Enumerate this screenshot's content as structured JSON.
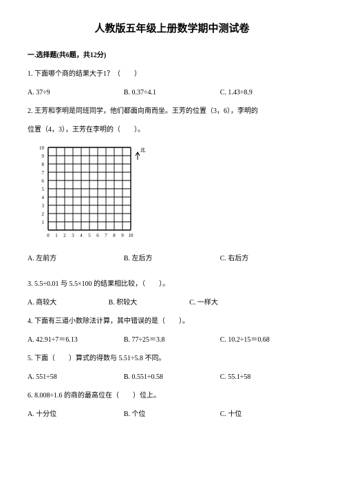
{
  "title": "人教版五年级上册数学期中测试卷",
  "section1": "一.选择题(共6题，共12分)",
  "q1": {
    "stem": "1. 下面哪个商的结果大于1？（　　）",
    "A": "A. 37÷9",
    "B": "B. 0.37÷4.1",
    "C": "C. 1.43÷8.9"
  },
  "q2": {
    "line1": "2. 王芳和李明是同班同学，他们都面向南而坐。王芳的位置（3，6），李明的",
    "line2": "位置（4，3），王芳在李明的（　　）。",
    "north": "北",
    "A": "A. 左前方",
    "B": "B. 左后方",
    "C": "C. 右后方"
  },
  "q3": {
    "stem": "3. 5.5÷0.01 与 5.5×100 的结果相比较，（　　）。",
    "A": "A. 商较大",
    "B": "B. 积较大",
    "C": "C. 一样大"
  },
  "q4": {
    "stem": "4. 下面有三道小数除法计算，其中错误的是（　　）。",
    "A": "A. 42.91÷7＝6.13",
    "B": "B. 77÷25＝3.8",
    "C": "C. 10.2÷15＝0.68"
  },
  "q5": {
    "stem": "5. 下面（　　）算式的得数与 5.51÷5.8 不同。",
    "A": "A. 551÷58",
    "B": "B. 0.551÷0.58",
    "C": "C. 55.1÷58"
  },
  "q6": {
    "stem": "6. 8.008÷1.6 的商的最高位在（　　）位上。",
    "A": "A. 十分位",
    "B": "B. 个位",
    "C": "C. 十位"
  },
  "grid": {
    "size": 10,
    "cell": 12,
    "stroke": "#000000",
    "labels_x": [
      "0",
      "1",
      "2",
      "3",
      "4",
      "5",
      "6",
      "7",
      "8",
      "9",
      "10"
    ],
    "labels_y": [
      "1",
      "2",
      "3",
      "4",
      "5",
      "6",
      "7",
      "8",
      "9",
      "10"
    ]
  }
}
